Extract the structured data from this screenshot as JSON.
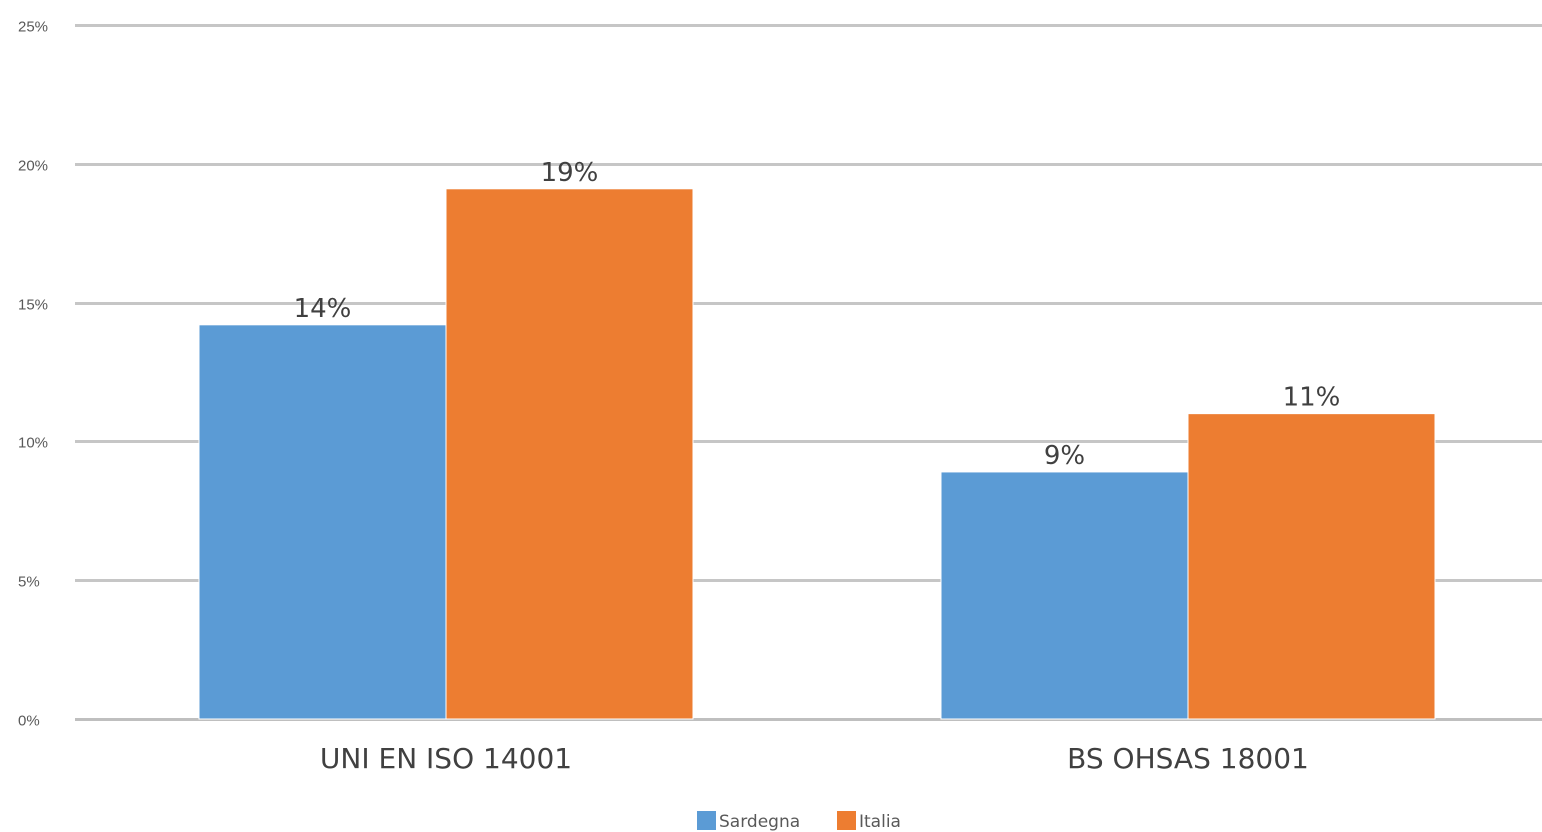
{
  "chart_data": {
    "type": "bar",
    "categories": [
      "UNI EN ISO 14001",
      "BS OHSAS 18001"
    ],
    "series": [
      {
        "name": "Sardegna",
        "color": "#5B9BD5",
        "values": [
          14.2,
          8.9
        ],
        "labels": [
          "14%",
          "9%"
        ]
      },
      {
        "name": "Italia",
        "color": "#ED7D31",
        "values": [
          19.1,
          11
        ],
        "labels": [
          "19%",
          "11%"
        ]
      }
    ],
    "y_ticks": [
      0,
      5,
      10,
      15,
      20,
      25
    ],
    "y_tick_labels": [
      "0%",
      "5%",
      "10%",
      "15%",
      "20%",
      "25%"
    ],
    "ylim": [
      0,
      25
    ],
    "title": "",
    "xlabel": "",
    "ylabel": "",
    "grid": true,
    "legend_position": "bottom-center"
  }
}
